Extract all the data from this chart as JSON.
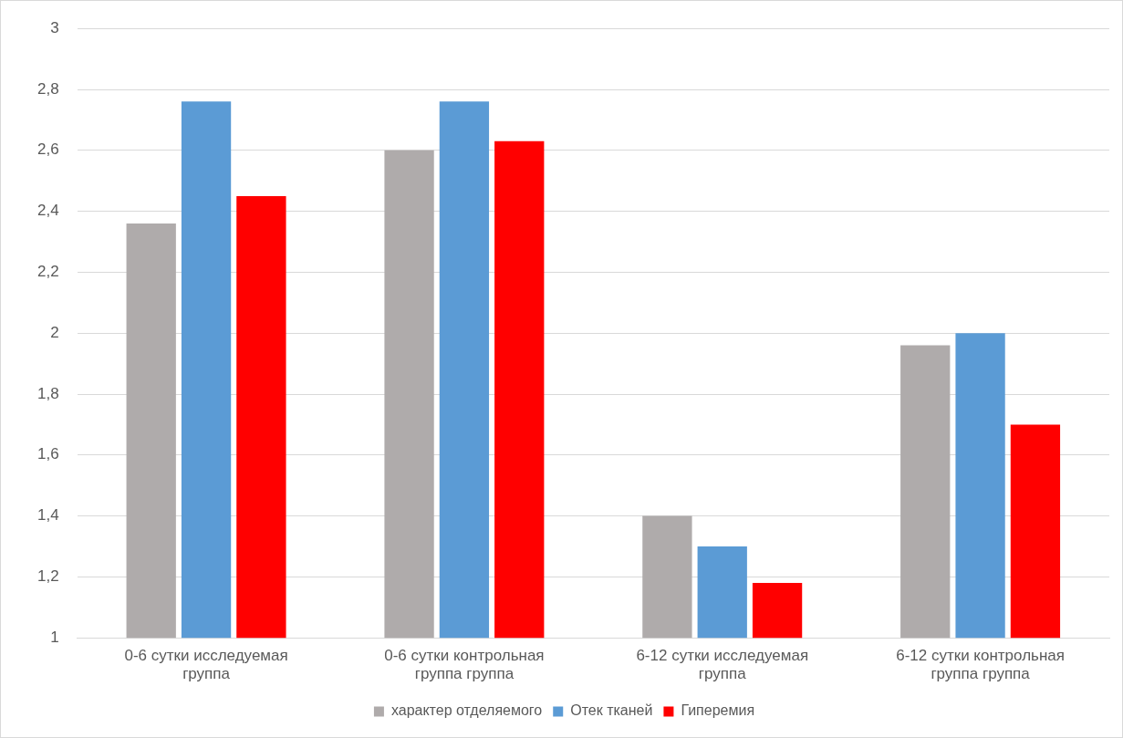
{
  "chart_data": {
    "type": "bar",
    "categories": [
      "0-6 сутки исследуемая группа",
      "0-6 сутки контрольная группа группа",
      "6-12 сутки исследуемая группа",
      "6-12 сутки контрольная группа группа"
    ],
    "series": [
      {
        "name": "характер отделяемого",
        "color": "#afabab",
        "values": [
          2.36,
          2.6,
          1.4,
          1.96
        ]
      },
      {
        "name": "Отек тканей",
        "color": "#5b9bd5",
        "values": [
          2.76,
          2.76,
          1.3,
          2.0
        ]
      },
      {
        "name": "Гиперемия",
        "color": "#ff0000",
        "values": [
          2.45,
          2.63,
          1.18,
          1.7
        ]
      }
    ],
    "ylim": [
      1,
      3
    ],
    "yticks": [
      {
        "value": 1,
        "label": "1"
      },
      {
        "value": 1.2,
        "label": "1,2"
      },
      {
        "value": 1.4,
        "label": "1,4"
      },
      {
        "value": 1.6,
        "label": "1,6"
      },
      {
        "value": 1.8,
        "label": "1,8"
      },
      {
        "value": 2,
        "label": "2"
      },
      {
        "value": 2.2,
        "label": "2,2"
      },
      {
        "value": 2.4,
        "label": "2,4"
      },
      {
        "value": 2.6,
        "label": "2,6"
      },
      {
        "value": 2.8,
        "label": "2,8"
      },
      {
        "value": 3,
        "label": "3"
      }
    ],
    "grid": "y",
    "legend": "bottom"
  }
}
